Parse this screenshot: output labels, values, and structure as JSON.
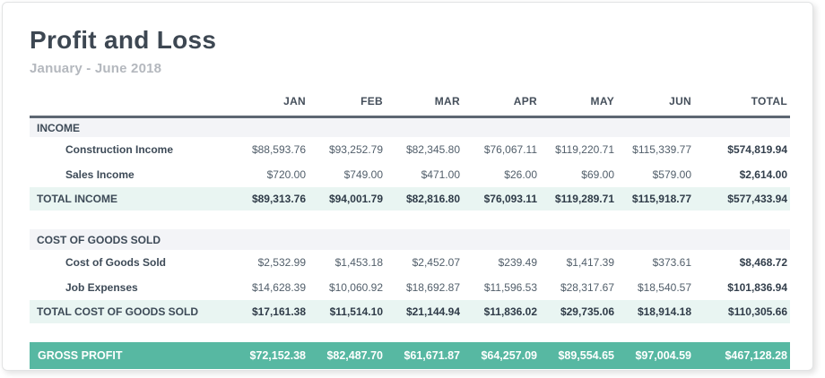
{
  "report": {
    "title": "Profit and Loss",
    "subtitle": "January - June 2018"
  },
  "colors": {
    "accent_teal": "#57b8a2",
    "total_row_bg": "#e9f5f2",
    "section_header_bg": "#f3f4f7",
    "header_rule": "#5d6772",
    "title_text": "#3d4752",
    "subtitle_text": "#b4b8be"
  },
  "table": {
    "columns": [
      "JAN",
      "FEB",
      "MAR",
      "APR",
      "MAY",
      "JUN",
      "TOTAL"
    ],
    "sections": [
      {
        "header": "INCOME",
        "rows": [
          {
            "label": "Construction Income",
            "values": [
              "$88,593.76",
              "$93,252.79",
              "$82,345.80",
              "$76,067.11",
              "$119,220.71",
              "$115,339.77",
              "$574,819.94"
            ]
          },
          {
            "label": "Sales Income",
            "values": [
              "$720.00",
              "$749.00",
              "$471.00",
              "$26.00",
              "$69.00",
              "$579.00",
              "$2,614.00"
            ]
          }
        ],
        "total": {
          "label": "TOTAL INCOME",
          "values": [
            "$89,313.76",
            "$94,001.79",
            "$82,816.80",
            "$76,093.11",
            "$119,289.71",
            "$115,918.77",
            "$577,433.94"
          ]
        }
      },
      {
        "header": "COST OF GOODS SOLD",
        "rows": [
          {
            "label": "Cost of Goods Sold",
            "values": [
              "$2,532.99",
              "$1,453.18",
              "$2,452.07",
              "$239.49",
              "$1,417.39",
              "$373.61",
              "$8,468.72"
            ]
          },
          {
            "label": "Job Expenses",
            "values": [
              "$14,628.39",
              "$10,060.92",
              "$18,692.87",
              "$11,596.53",
              "$28,317.67",
              "$18,540.57",
              "$101,836.94"
            ]
          }
        ],
        "total": {
          "label": "TOTAL COST OF GOODS SOLD",
          "values": [
            "$17,161.38",
            "$11,514.10",
            "$21,144.94",
            "$11,836.02",
            "$29,735.06",
            "$18,914.18",
            "$110,305.66"
          ]
        }
      }
    ],
    "gross_profit": {
      "label": "GROSS PROFIT",
      "values": [
        "$72,152.38",
        "$82,487.70",
        "$61,671.87",
        "$64,257.09",
        "$89,554.65",
        "$97,004.59",
        "$467,128.28"
      ]
    }
  }
}
